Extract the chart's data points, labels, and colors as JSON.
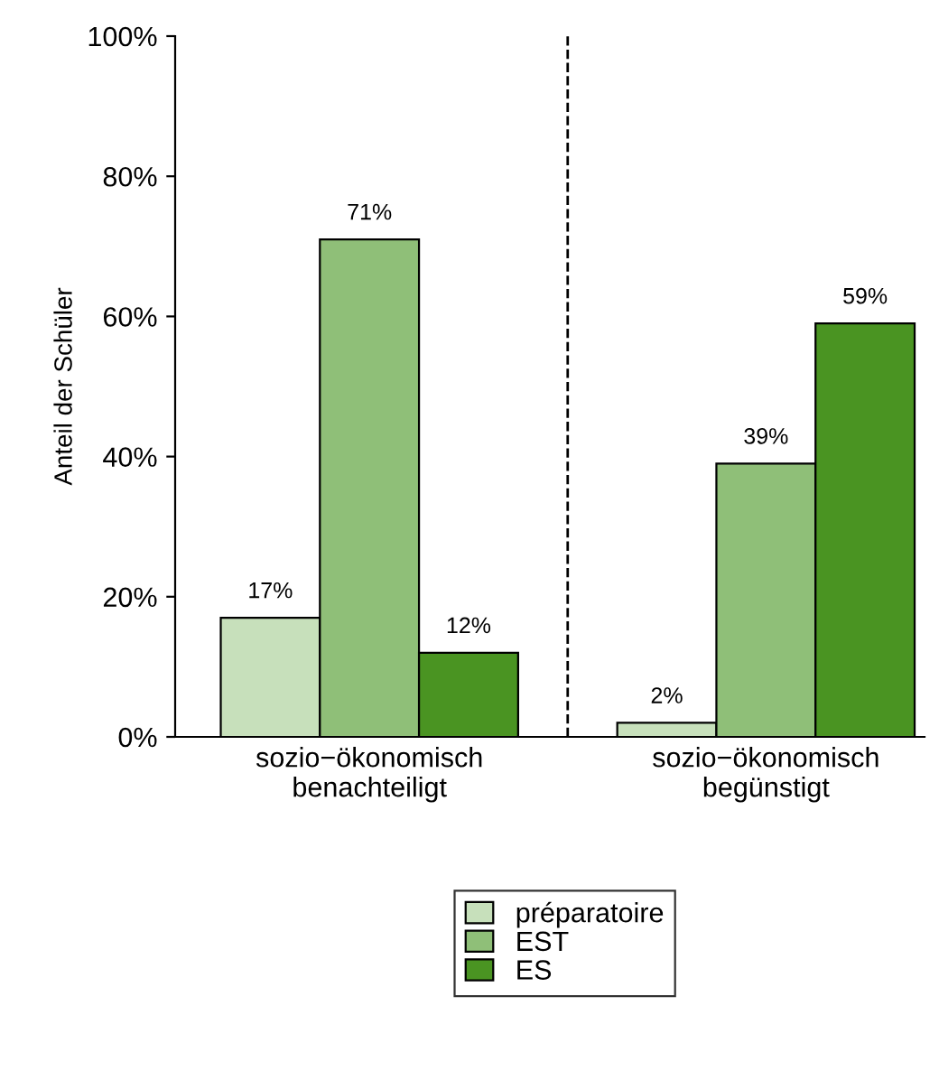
{
  "chart_data": {
    "type": "bar",
    "categories": [
      "sozio−ökonomisch\nbenachteiligt",
      "sozio−ökonomisch\nbegünstigt"
    ],
    "series": [
      {
        "name": "préparatoire",
        "color": "#c7e0bb",
        "values": [
          17,
          2
        ]
      },
      {
        "name": "EST",
        "color": "#8fbf78",
        "values": [
          71,
          39
        ]
      },
      {
        "name": "ES",
        "color": "#4a9422",
        "values": [
          12,
          59
        ]
      }
    ],
    "ylabel": "Anteil der Schüler",
    "ylim": [
      0,
      100
    ],
    "yticks": [
      {
        "value": 0,
        "label": "0%"
      },
      {
        "value": 20,
        "label": "20%"
      },
      {
        "value": 40,
        "label": "40%"
      },
      {
        "value": 60,
        "label": "60%"
      },
      {
        "value": 80,
        "label": "80%"
      },
      {
        "value": 100,
        "label": "100%"
      }
    ],
    "value_labels": [
      [
        "17%",
        "2%"
      ],
      [
        "71%",
        "39%"
      ],
      [
        "12%",
        "59%"
      ]
    ],
    "grid": false,
    "legend": "bottom"
  }
}
